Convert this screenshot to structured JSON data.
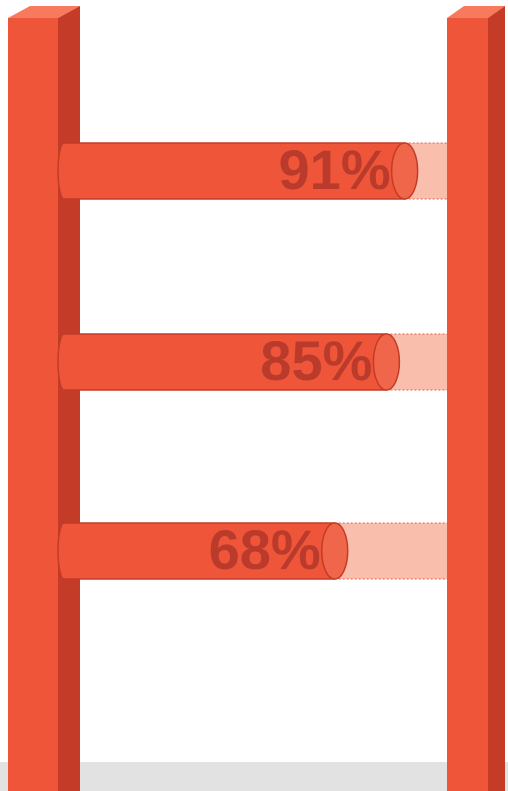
{
  "chart_data": {
    "type": "bar",
    "values": [
      91,
      85,
      68
    ],
    "value_labels": [
      "91%",
      "85%",
      "68%"
    ],
    "color": "#ef5538"
  }
}
